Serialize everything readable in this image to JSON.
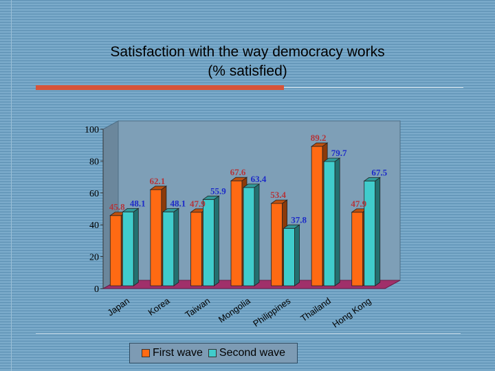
{
  "title_line1": "Satisfaction with the way democracy works",
  "title_line2": "(% satisfied)",
  "colors": {
    "first": "#ff6a13",
    "second": "#40cccc",
    "floor": "#a0306a",
    "wall": "#7e9fb7"
  },
  "chart_data": {
    "type": "bar",
    "title": "Satisfaction with the way democracy works (% satisfied)",
    "categories": [
      "Japan",
      "Korea",
      "Taiwan",
      "Mongolia",
      "Philippines",
      "Thailand",
      "Hong Kong"
    ],
    "series": [
      {
        "name": "First wave",
        "values": [
          45.8,
          62.1,
          47.9,
          67.6,
          53.4,
          89.2,
          47.9
        ],
        "labels": [
          "45.8",
          "62.1",
          "47.9",
          "67.6",
          "53.4",
          "89.2",
          "47.9"
        ]
      },
      {
        "name": "Second wave",
        "values": [
          48.1,
          48.1,
          55.9,
          63.4,
          37.8,
          79.7,
          67.5
        ],
        "labels": [
          "48.1",
          "48.1",
          "55.9",
          "63.4",
          "37.8",
          "79.7",
          "67.5"
        ]
      }
    ],
    "yticks": [
      "0",
      "20",
      "40",
      "60",
      "80",
      "100"
    ],
    "ylim": [
      0,
      100
    ],
    "xlabel": "",
    "ylabel": "",
    "legend": "bottom",
    "grid": false
  }
}
